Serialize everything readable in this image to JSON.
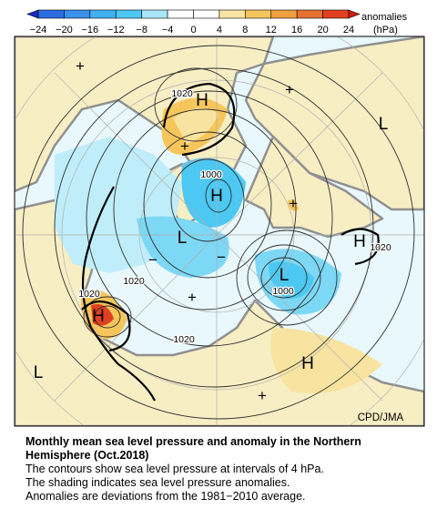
{
  "colorbar": {
    "ticks": [
      "−24",
      "−20",
      "−16",
      "−12",
      "−8",
      "−4",
      "0",
      "4",
      "8",
      "12",
      "16",
      "20",
      "24"
    ],
    "colors": [
      "#2c6ee0",
      "#3a90ea",
      "#40b0f2",
      "#4cc8f2",
      "#a8e6f8",
      "#ffffff",
      "#ffffff",
      "#f8e4a0",
      "#f6c65c",
      "#f0a040",
      "#e87030",
      "#e04020"
    ],
    "under_color": "#1828c0",
    "over_color": "#d01c10",
    "label": "anomalies",
    "unit": "(hPa)"
  },
  "map_labels": [
    "+",
    "H",
    "1020",
    "+",
    "L",
    "+",
    "1000",
    "H",
    "+",
    "L",
    "H",
    "1020",
    "−",
    "−",
    "1020",
    "L",
    "1000",
    "+",
    "1020",
    "H",
    "1020",
    "L",
    "H",
    "+"
  ],
  "credit": "CPD/JMA",
  "caption": {
    "title": "Monthly mean sea level pressure and anomaly in the Northern Hemisphere (Oct.2018)",
    "lines": [
      "The contours show sea level pressure at intervals of 4 hPa.",
      "The shading indicates sea level pressure anomalies.",
      "Anomalies are deviations from the 1981−2010 average."
    ]
  }
}
